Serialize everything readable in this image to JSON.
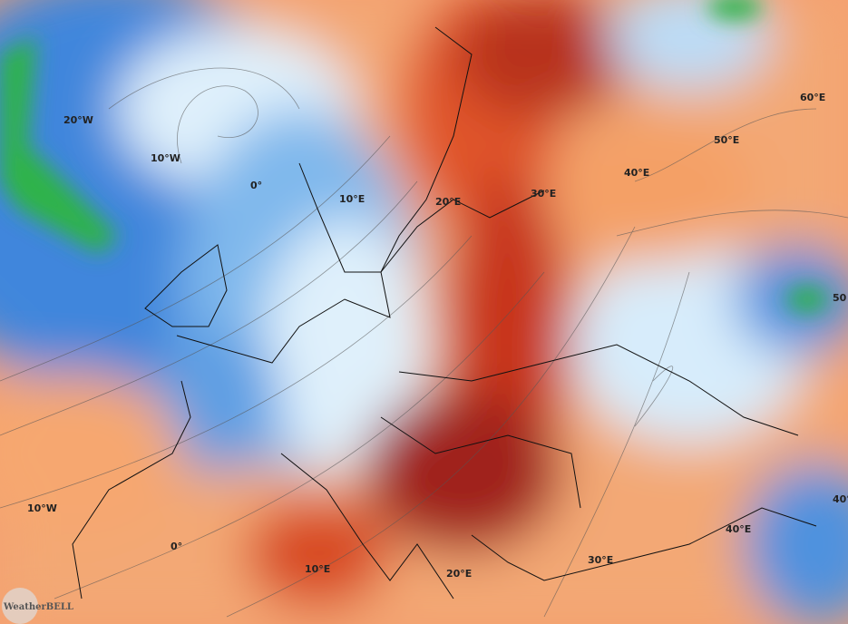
{
  "map": {
    "lon_labels": [
      "20°W",
      "10°W",
      "0°",
      "10°E",
      "20°E",
      "30°E",
      "40°E",
      "50°E",
      "60°E",
      "50",
      "40°",
      "10°W",
      "0°",
      "10°E",
      "20°E",
      "30°E",
      "40°E"
    ],
    "watermark": "WeatherBELL"
  }
}
